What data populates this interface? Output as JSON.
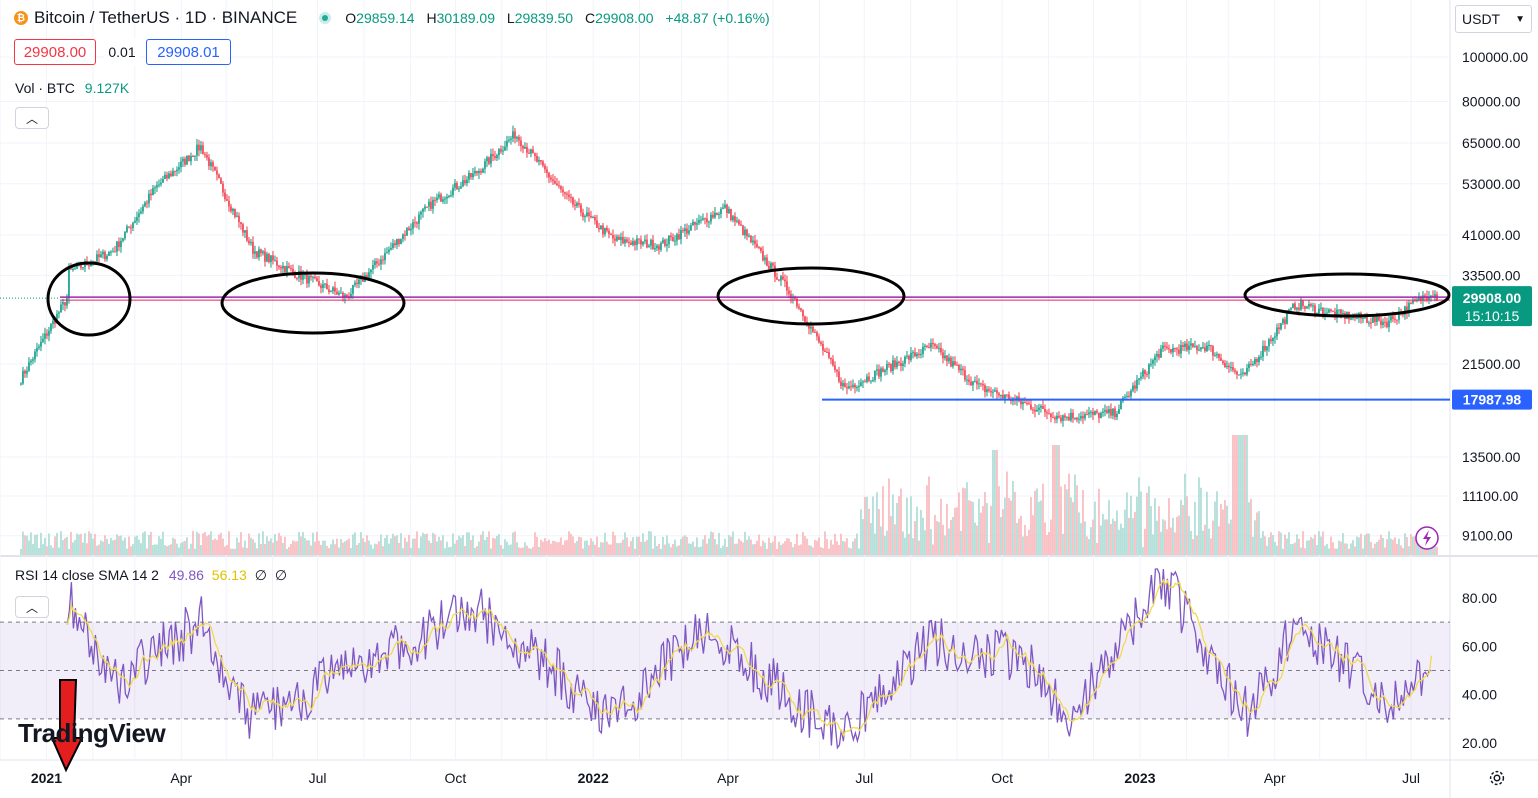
{
  "header": {
    "symbol": "Bitcoin / TetherUS · 1D · BINANCE",
    "open_label": "O",
    "open": "29859.14",
    "high_label": "H",
    "high": "30189.09",
    "low_label": "L",
    "low": "29839.50",
    "close_label": "C",
    "close": "29908.00",
    "change": "+48.87 (+0.16%)",
    "sell_price": "29908.00",
    "spread": "0.01",
    "buy_price": "29908.01"
  },
  "volume_legend": {
    "label": "Vol · BTC",
    "value": "9.127K"
  },
  "rsi_legend": {
    "label": "RSI 14 close SMA 14 2",
    "rsi": "49.86",
    "sma": "56.13",
    "extra1": "∅",
    "extra2": "∅"
  },
  "currency_selector": {
    "value": "USDT",
    "icon": "chevron-down-icon"
  },
  "brand": "TradingView",
  "colors": {
    "up": "#089981",
    "down": "#f23645",
    "support_line": "#2962ff",
    "resistance_line": "#9c27b0",
    "rsi_line": "#7e57c2",
    "rsi_sma": "#f2d94e",
    "ellipse": "#000000",
    "annotation_arrow": "#e41e1e"
  },
  "chart_data": [
    {
      "type": "candlestick",
      "title": "",
      "scale": "log",
      "y_ticks": [
        "100000.00",
        "80000.00",
        "65000.00",
        "53000.00",
        "41000.00",
        "33500.00",
        "21500.00",
        "13500.00",
        "11100.00",
        "9100.00"
      ],
      "x_ticks": [
        "2021",
        "Apr",
        "Jul",
        "Oct",
        "2022",
        "Apr",
        "Jul",
        "Oct",
        "2023",
        "Apr",
        "Jul"
      ],
      "key_points": {
        "x": [
          "2020-12",
          "2021-01",
          "2021-01-12",
          "2021-02",
          "2021-03",
          "2021-04-14",
          "2021-05-19",
          "2021-06",
          "2021-07-20",
          "2021-09",
          "2021-10",
          "2021-11-10",
          "2021-12",
          "2022-01",
          "2022-02",
          "2022-03-30",
          "2022-05",
          "2022-06-18",
          "2022-08",
          "2022-09",
          "2022-11-09",
          "2022-12",
          "2023-01",
          "2023-02",
          "2023-03-10",
          "2023-04",
          "2023-05",
          "2023-06",
          "2023-07",
          "2023-07-19"
        ],
        "close": [
          20000,
          30000,
          33500,
          38000,
          52000,
          64000,
          38000,
          34000,
          30000,
          48000,
          56000,
          68000,
          49000,
          40000,
          39000,
          47000,
          30000,
          19000,
          23500,
          19200,
          16500,
          16800,
          23000,
          23500,
          20000,
          29000,
          27500,
          26500,
          31000,
          29908
        ]
      },
      "current_price": "29908.00",
      "countdown": "15:10:15",
      "support_level": "17987.98",
      "horizontal_line_price": 29908,
      "annotations": [
        "ellipse-2021-01",
        "ellipse-2021-06",
        "ellipse-2022-05",
        "ellipse-2023-06",
        "arrow-2021"
      ]
    },
    {
      "type": "bar",
      "title": "Vol · BTC",
      "last_value": "9.127K"
    },
    {
      "type": "line",
      "title": "RSI 14 close SMA 14 2",
      "y_ticks": [
        "80.00",
        "60.00",
        "40.00",
        "20.00"
      ],
      "bands": [
        30,
        50,
        70
      ],
      "rsi_last": 49.86,
      "sma_last": 56.13,
      "key_points": {
        "x": [
          "2021-01",
          "2021-02",
          "2021-04",
          "2021-05",
          "2021-06",
          "2021-07",
          "2021-10",
          "2021-11",
          "2022-01",
          "2022-03",
          "2022-06",
          "2022-08",
          "2022-10",
          "2022-11",
          "2023-01",
          "2023-03",
          "2023-04",
          "2023-06",
          "2023-07"
        ],
        "rsi": [
          80,
          45,
          70,
          30,
          38,
          48,
          75,
          60,
          30,
          68,
          22,
          62,
          55,
          28,
          90,
          30,
          70,
          38,
          49.86
        ]
      }
    }
  ]
}
